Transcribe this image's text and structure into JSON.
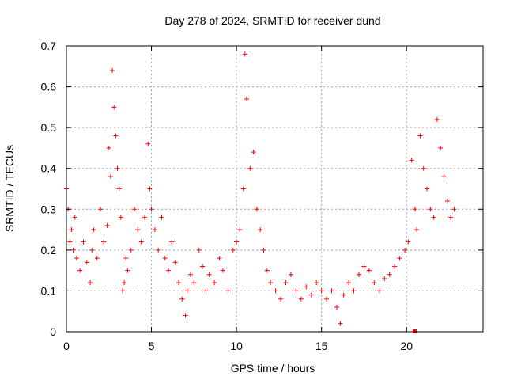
{
  "chart_data": {
    "type": "scatter",
    "title": "Day 278 of 2024, SRMTID for receiver dund",
    "xlabel": "GPS time / hours",
    "ylabel": "SRMTID / TECUs",
    "xlim": [
      0,
      24.5
    ],
    "ylim": [
      0,
      0.7
    ],
    "xticks": [
      0,
      5,
      10,
      15,
      20
    ],
    "xtick_labels": [
      "0",
      "5",
      "10",
      "15",
      "20"
    ],
    "yticks": [
      0,
      0.1,
      0.2,
      0.3,
      0.4,
      0.5,
      0.6,
      0.7
    ],
    "ytick_labels": [
      "0",
      "0.1",
      "0.2",
      "0.3",
      "0.4",
      "0.5",
      "0.6",
      "0.7"
    ],
    "grid": true,
    "marker": "+",
    "color": "#ff0000",
    "series": [
      {
        "name": "SRMTID",
        "x": [
          0.0,
          0.1,
          0.2,
          0.3,
          0.4,
          0.5,
          0.6,
          0.8,
          1.0,
          1.2,
          1.4,
          1.5,
          1.6,
          1.8,
          2.0,
          2.2,
          2.4,
          2.5,
          2.6,
          2.7,
          2.8,
          2.9,
          3.0,
          3.1,
          3.2,
          3.3,
          3.4,
          3.5,
          3.6,
          3.8,
          4.0,
          4.2,
          4.4,
          4.6,
          4.8,
          4.9,
          5.0,
          5.2,
          5.4,
          5.6,
          5.8,
          6.0,
          6.2,
          6.4,
          6.6,
          6.8,
          7.0,
          7.1,
          7.3,
          7.5,
          7.8,
          8.0,
          8.2,
          8.4,
          8.7,
          9.0,
          9.2,
          9.5,
          9.8,
          10.0,
          10.2,
          10.4,
          10.5,
          10.6,
          10.8,
          11.0,
          11.2,
          11.4,
          11.6,
          11.8,
          12.0,
          12.3,
          12.6,
          12.9,
          13.2,
          13.5,
          13.8,
          14.1,
          14.4,
          14.7,
          15.0,
          15.3,
          15.6,
          15.9,
          16.1,
          16.3,
          16.6,
          16.9,
          17.2,
          17.5,
          17.8,
          18.1,
          18.4,
          18.7,
          19.0,
          19.3,
          19.6,
          19.9,
          20.1,
          20.3,
          20.5,
          20.6,
          20.8,
          21.0,
          21.2,
          21.4,
          21.6,
          21.8,
          22.0,
          22.2,
          22.4,
          22.6,
          22.8
        ],
        "y": [
          0.35,
          0.3,
          0.22,
          0.25,
          0.2,
          0.28,
          0.18,
          0.15,
          0.22,
          0.17,
          0.12,
          0.2,
          0.25,
          0.18,
          0.3,
          0.22,
          0.26,
          0.45,
          0.38,
          0.64,
          0.55,
          0.48,
          0.4,
          0.35,
          0.28,
          0.1,
          0.12,
          0.18,
          0.15,
          0.2,
          0.3,
          0.25,
          0.22,
          0.28,
          0.46,
          0.35,
          0.3,
          0.25,
          0.2,
          0.28,
          0.18,
          0.15,
          0.22,
          0.17,
          0.12,
          0.08,
          0.04,
          0.1,
          0.14,
          0.12,
          0.2,
          0.16,
          0.1,
          0.14,
          0.12,
          0.18,
          0.15,
          0.1,
          0.2,
          0.22,
          0.25,
          0.35,
          0.68,
          0.57,
          0.4,
          0.44,
          0.3,
          0.25,
          0.2,
          0.15,
          0.12,
          0.1,
          0.08,
          0.12,
          0.14,
          0.1,
          0.08,
          0.11,
          0.09,
          0.12,
          0.1,
          0.08,
          0.1,
          0.06,
          0.02,
          0.09,
          0.12,
          0.1,
          0.14,
          0.16,
          0.15,
          0.12,
          0.1,
          0.13,
          0.14,
          0.16,
          0.18,
          0.2,
          0.22,
          0.42,
          0.3,
          0.25,
          0.48,
          0.4,
          0.35,
          0.3,
          0.28,
          0.52,
          0.45,
          0.38,
          0.32,
          0.28,
          0.3
        ]
      }
    ],
    "annotations": [
      {
        "type": "square-marker",
        "x": 20.45,
        "y": 0.0
      }
    ]
  }
}
